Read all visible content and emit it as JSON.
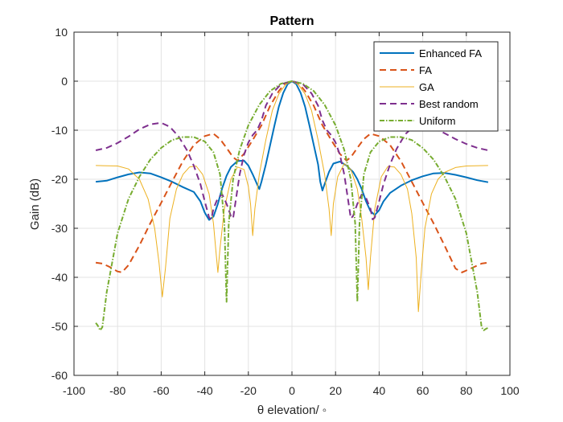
{
  "chart_data": {
    "type": "line",
    "title": "Pattern",
    "xlabel": "θ elevation/ ◦",
    "ylabel": "Gain (dB)",
    "xlim": [
      -100,
      100
    ],
    "ylim": [
      -60,
      10
    ],
    "xticks": [
      -100,
      -80,
      -60,
      -40,
      -20,
      0,
      20,
      40,
      60,
      80,
      100
    ],
    "yticks": [
      10,
      0,
      -10,
      -20,
      -30,
      -40,
      -50,
      -60
    ],
    "grid": true,
    "legend_position": "top-right",
    "series": [
      {
        "name": "Enhanced FA",
        "color": "#0072BD",
        "dash": "solid",
        "width": 2,
        "points": [
          [
            -90,
            -20.5
          ],
          [
            -85,
            -20.3
          ],
          [
            -80,
            -19.6
          ],
          [
            -75,
            -19
          ],
          [
            -70,
            -18.6
          ],
          [
            -65,
            -18.8
          ],
          [
            -60,
            -19.6
          ],
          [
            -55,
            -20.5
          ],
          [
            -50,
            -21.6
          ],
          [
            -45,
            -22.6
          ],
          [
            -42,
            -24.5
          ],
          [
            -40,
            -26.8
          ],
          [
            -38,
            -28.3
          ],
          [
            -36,
            -27.6
          ],
          [
            -34,
            -25
          ],
          [
            -32,
            -21.8
          ],
          [
            -30,
            -19.3
          ],
          [
            -28,
            -17.5
          ],
          [
            -25,
            -16.3
          ],
          [
            -22,
            -16.2
          ],
          [
            -20,
            -17.2
          ],
          [
            -18,
            -19
          ],
          [
            -16,
            -21
          ],
          [
            -15,
            -22
          ],
          [
            -14,
            -20.5
          ],
          [
            -12,
            -17
          ],
          [
            -10,
            -13
          ],
          [
            -8,
            -9
          ],
          [
            -6,
            -5.2
          ],
          [
            -4,
            -2.4
          ],
          [
            -2,
            -0.6
          ],
          [
            0,
            0
          ],
          [
            2,
            -0.6
          ],
          [
            4,
            -2.4
          ],
          [
            6,
            -5.2
          ],
          [
            8,
            -9
          ],
          [
            10,
            -13
          ],
          [
            12,
            -17
          ],
          [
            13,
            -20.5
          ],
          [
            14,
            -22.3
          ],
          [
            15,
            -21
          ],
          [
            17,
            -18.5
          ],
          [
            19,
            -16.8
          ],
          [
            22,
            -16.4
          ],
          [
            25,
            -17.2
          ],
          [
            28,
            -18.5
          ],
          [
            30,
            -20
          ],
          [
            32,
            -22
          ],
          [
            34,
            -24.5
          ],
          [
            36,
            -26.5
          ],
          [
            38,
            -27.3
          ],
          [
            40,
            -26.3
          ],
          [
            42,
            -24.5
          ],
          [
            45,
            -22.8
          ],
          [
            50,
            -21.3
          ],
          [
            55,
            -20.2
          ],
          [
            60,
            -19.4
          ],
          [
            65,
            -18.8
          ],
          [
            70,
            -18.7
          ],
          [
            75,
            -19.1
          ],
          [
            80,
            -19.6
          ],
          [
            85,
            -20.2
          ],
          [
            90,
            -20.6
          ]
        ]
      },
      {
        "name": "FA",
        "color": "#D95319",
        "dash": "8,5",
        "width": 2,
        "points": [
          [
            -90,
            -37
          ],
          [
            -87,
            -37.2
          ],
          [
            -84,
            -37.8
          ],
          [
            -80,
            -38.8
          ],
          [
            -78,
            -39
          ],
          [
            -75,
            -37.5
          ],
          [
            -70,
            -33.5
          ],
          [
            -65,
            -29
          ],
          [
            -60,
            -24.8
          ],
          [
            -55,
            -20.5
          ],
          [
            -50,
            -16.3
          ],
          [
            -45,
            -13
          ],
          [
            -40,
            -11.2
          ],
          [
            -36,
            -10.7
          ],
          [
            -33,
            -11.8
          ],
          [
            -30,
            -13.6
          ],
          [
            -27,
            -15.5
          ],
          [
            -25,
            -16.2
          ],
          [
            -22,
            -14.8
          ],
          [
            -18,
            -12
          ],
          [
            -14,
            -9
          ],
          [
            -10,
            -5
          ],
          [
            -6,
            -2
          ],
          [
            -3,
            -0.4
          ],
          [
            0,
            0
          ],
          [
            3,
            -0.4
          ],
          [
            6,
            -2
          ],
          [
            10,
            -5
          ],
          [
            14,
            -9
          ],
          [
            18,
            -12
          ],
          [
            22,
            -14.8
          ],
          [
            25,
            -16.2
          ],
          [
            27,
            -15.5
          ],
          [
            30,
            -13.6
          ],
          [
            33,
            -11.8
          ],
          [
            36,
            -10.7
          ],
          [
            40,
            -11.2
          ],
          [
            45,
            -13
          ],
          [
            50,
            -16.3
          ],
          [
            55,
            -20.5
          ],
          [
            60,
            -24.8
          ],
          [
            65,
            -29
          ],
          [
            70,
            -33.5
          ],
          [
            75,
            -38.2
          ],
          [
            78,
            -39
          ],
          [
            80,
            -38.6
          ],
          [
            84,
            -37.8
          ],
          [
            87,
            -37.2
          ],
          [
            90,
            -37
          ]
        ]
      },
      {
        "name": "GA",
        "color": "#EDB120",
        "dash": "solid",
        "width": 1,
        "points": [
          [
            -90,
            -17.2
          ],
          [
            -80,
            -17.3
          ],
          [
            -75,
            -17.9
          ],
          [
            -70,
            -20
          ],
          [
            -66,
            -24
          ],
          [
            -63,
            -30
          ],
          [
            -61,
            -37
          ],
          [
            -59.5,
            -44
          ],
          [
            -58,
            -38
          ],
          [
            -56,
            -28
          ],
          [
            -53,
            -22
          ],
          [
            -50,
            -19
          ],
          [
            -47,
            -17.5
          ],
          [
            -44,
            -17.3
          ],
          [
            -41,
            -19
          ],
          [
            -38,
            -23
          ],
          [
            -36,
            -29
          ],
          [
            -35,
            -34
          ],
          [
            -34,
            -39
          ],
          [
            -33,
            -34
          ],
          [
            -31,
            -26
          ],
          [
            -28,
            -20
          ],
          [
            -25,
            -17.5
          ],
          [
            -22,
            -18
          ],
          [
            -20,
            -21.5
          ],
          [
            -19,
            -25
          ],
          [
            -18,
            -31.5
          ],
          [
            -17,
            -26
          ],
          [
            -15,
            -19
          ],
          [
            -12,
            -12
          ],
          [
            -9,
            -6
          ],
          [
            -6,
            -2.6
          ],
          [
            -3,
            -0.7
          ],
          [
            0,
            0
          ],
          [
            3,
            -0.7
          ],
          [
            6,
            -2.6
          ],
          [
            9,
            -6
          ],
          [
            12,
            -12
          ],
          [
            15,
            -19
          ],
          [
            17,
            -26
          ],
          [
            18,
            -31.5
          ],
          [
            19,
            -25
          ],
          [
            21,
            -19.5
          ],
          [
            24,
            -16.8
          ],
          [
            27,
            -18
          ],
          [
            30,
            -22
          ],
          [
            32,
            -28
          ],
          [
            34,
            -36
          ],
          [
            35,
            -42.5
          ],
          [
            36,
            -36
          ],
          [
            38,
            -26
          ],
          [
            41,
            -19.5
          ],
          [
            44,
            -17.4
          ],
          [
            47,
            -17.5
          ],
          [
            50,
            -19
          ],
          [
            53,
            -22
          ],
          [
            55,
            -27
          ],
          [
            57,
            -36
          ],
          [
            58,
            -47
          ],
          [
            59.5,
            -38
          ],
          [
            61,
            -30
          ],
          [
            64,
            -23
          ],
          [
            67,
            -20
          ],
          [
            70,
            -18.6
          ],
          [
            75,
            -17.6
          ],
          [
            80,
            -17.3
          ],
          [
            90,
            -17.2
          ]
        ]
      },
      {
        "name": "Best random",
        "color": "#7E2F8E",
        "dash": "8,5",
        "width": 2,
        "points": [
          [
            -90,
            -14.1
          ],
          [
            -85,
            -13.6
          ],
          [
            -80,
            -12.6
          ],
          [
            -75,
            -11.3
          ],
          [
            -70,
            -9.8
          ],
          [
            -65,
            -8.8
          ],
          [
            -60,
            -8.5
          ],
          [
            -56,
            -9.3
          ],
          [
            -52,
            -11.3
          ],
          [
            -48,
            -14.2
          ],
          [
            -45,
            -17.3
          ],
          [
            -42,
            -21
          ],
          [
            -40,
            -24.5
          ],
          [
            -38,
            -27.8
          ],
          [
            -37,
            -28.2
          ],
          [
            -36,
            -26
          ],
          [
            -34,
            -23.8
          ],
          [
            -32,
            -23.1
          ],
          [
            -30,
            -25
          ],
          [
            -28,
            -27.5
          ],
          [
            -27,
            -28
          ],
          [
            -26,
            -25
          ],
          [
            -24,
            -19
          ],
          [
            -22,
            -15
          ],
          [
            -20,
            -12.5
          ],
          [
            -18,
            -11
          ],
          [
            -16,
            -10
          ],
          [
            -14,
            -8
          ],
          [
            -12,
            -5
          ],
          [
            -9,
            -2.5
          ],
          [
            -5,
            -0.6
          ],
          [
            0,
            0
          ],
          [
            5,
            -0.6
          ],
          [
            9,
            -2.5
          ],
          [
            12,
            -5
          ],
          [
            14,
            -8
          ],
          [
            16,
            -10
          ],
          [
            18,
            -11
          ],
          [
            20,
            -12.5
          ],
          [
            22,
            -15
          ],
          [
            24,
            -19
          ],
          [
            26,
            -25
          ],
          [
            27,
            -28
          ],
          [
            28,
            -27.5
          ],
          [
            30,
            -25
          ],
          [
            32,
            -23.1
          ],
          [
            34,
            -23.8
          ],
          [
            36,
            -26
          ],
          [
            37,
            -28.2
          ],
          [
            38,
            -27.8
          ],
          [
            40,
            -24.5
          ],
          [
            42,
            -21
          ],
          [
            45,
            -17
          ],
          [
            48,
            -13.8
          ],
          [
            52,
            -10.8
          ],
          [
            56,
            -9.2
          ],
          [
            60,
            -8.8
          ],
          [
            65,
            -9.6
          ],
          [
            70,
            -10.6
          ],
          [
            75,
            -11.8
          ],
          [
            80,
            -12.8
          ],
          [
            85,
            -13.6
          ],
          [
            90,
            -14.1
          ]
        ]
      },
      {
        "name": "Uniform",
        "color": "#77AC30",
        "dash": "6,2,1.5,2",
        "width": 2,
        "points": [
          [
            -90,
            -49.3
          ],
          [
            -89,
            -49.9
          ],
          [
            -88,
            -50.8
          ],
          [
            -87,
            -50.2
          ],
          [
            -85,
            -43
          ],
          [
            -80,
            -31
          ],
          [
            -75,
            -24
          ],
          [
            -70,
            -19.5
          ],
          [
            -65,
            -16
          ],
          [
            -60,
            -13.6
          ],
          [
            -55,
            -12
          ],
          [
            -50,
            -11.4
          ],
          [
            -45,
            -11.4
          ],
          [
            -40,
            -12.3
          ],
          [
            -36,
            -14.5
          ],
          [
            -33,
            -19
          ],
          [
            -31,
            -29
          ],
          [
            -30,
            -45
          ],
          [
            -29,
            -29
          ],
          [
            -27,
            -20
          ],
          [
            -24,
            -14
          ],
          [
            -20,
            -9
          ],
          [
            -15,
            -4.8
          ],
          [
            -10,
            -2
          ],
          [
            -5,
            -0.5
          ],
          [
            0,
            0
          ],
          [
            5,
            -0.5
          ],
          [
            10,
            -2
          ],
          [
            15,
            -4.8
          ],
          [
            20,
            -9
          ],
          [
            24,
            -14
          ],
          [
            27,
            -20
          ],
          [
            29,
            -29
          ],
          [
            30,
            -45
          ],
          [
            31,
            -29
          ],
          [
            33,
            -19
          ],
          [
            36,
            -14.5
          ],
          [
            40,
            -12.3
          ],
          [
            45,
            -11.4
          ],
          [
            50,
            -11.4
          ],
          [
            55,
            -12
          ],
          [
            60,
            -13.6
          ],
          [
            65,
            -16
          ],
          [
            70,
            -19.5
          ],
          [
            75,
            -24
          ],
          [
            80,
            -31
          ],
          [
            85,
            -43
          ],
          [
            87,
            -50.2
          ],
          [
            88,
            -50.8
          ],
          [
            89,
            -50.5
          ],
          [
            90,
            -50.3
          ]
        ]
      }
    ]
  }
}
